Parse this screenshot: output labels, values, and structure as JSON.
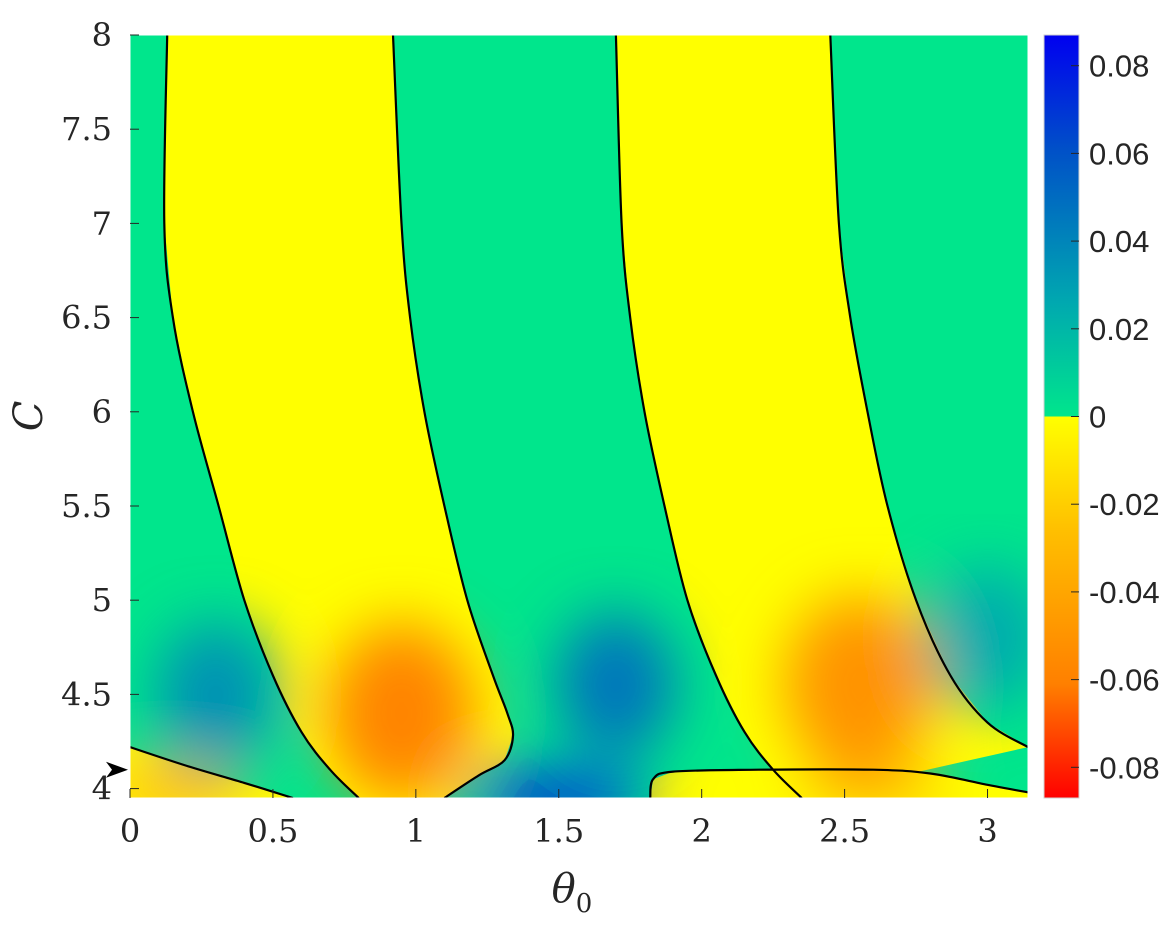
{
  "chart_data": {
    "type": "heatmap",
    "title": "",
    "xlabel": "θ",
    "xlabel_subscript": "0",
    "ylabel": "C",
    "xlim": [
      0,
      3.1416
    ],
    "ylim": [
      3.95,
      8
    ],
    "x_ticks": [
      {
        "value": 0,
        "label": "0"
      },
      {
        "value": 0.5,
        "label": "0.5"
      },
      {
        "value": 1,
        "label": "1"
      },
      {
        "value": 1.5,
        "label": "1.5"
      },
      {
        "value": 2,
        "label": "2"
      },
      {
        "value": 2.5,
        "label": "2.5"
      },
      {
        "value": 3,
        "label": "3"
      }
    ],
    "y_ticks": [
      {
        "value": 4,
        "label": "4"
      },
      {
        "value": 4.5,
        "label": "4.5"
      },
      {
        "value": 5,
        "label": "5"
      },
      {
        "value": 5.5,
        "label": "5.5"
      },
      {
        "value": 6,
        "label": "6"
      },
      {
        "value": 6.5,
        "label": "6.5"
      },
      {
        "value": 7,
        "label": "7"
      },
      {
        "value": 7.5,
        "label": "7.5"
      },
      {
        "value": 8,
        "label": "8"
      }
    ],
    "colorbar": {
      "range": [
        -0.087,
        0.087
      ],
      "ticks": [
        {
          "value": 0.08,
          "label": "0.08"
        },
        {
          "value": 0.06,
          "label": "0.06"
        },
        {
          "value": 0.04,
          "label": "0.04"
        },
        {
          "value": 0.02,
          "label": "0.02"
        },
        {
          "value": 0,
          "label": "0"
        },
        {
          "value": -0.02,
          "label": "-0.02"
        },
        {
          "value": -0.04,
          "label": "-0.04"
        },
        {
          "value": -0.06,
          "label": "-0.06"
        },
        {
          "value": -0.08,
          "label": "-0.08"
        }
      ],
      "positive_colors": [
        "#00e68c",
        "#00a8b0",
        "#0050c8",
        "#0000f0"
      ],
      "negative_colors": [
        "#ffff00",
        "#ffbf00",
        "#ff8000",
        "#ff0000"
      ]
    },
    "zero_contours": [
      {
        "name": "contour-1",
        "points": [
          [
            0.13,
            8
          ],
          [
            0.12,
            7
          ],
          [
            0.15,
            6.5
          ],
          [
            0.22,
            6
          ],
          [
            0.31,
            5.5
          ],
          [
            0.4,
            5.0
          ],
          [
            0.5,
            4.6
          ],
          [
            0.6,
            4.3
          ],
          [
            0.7,
            4.1
          ],
          [
            0.8,
            3.95
          ]
        ]
      },
      {
        "name": "contour-2",
        "points": [
          [
            0.92,
            8
          ],
          [
            0.95,
            7
          ],
          [
            0.98,
            6.5
          ],
          [
            1.03,
            6
          ],
          [
            1.1,
            5.5
          ],
          [
            1.18,
            5.0
          ],
          [
            1.27,
            4.6
          ],
          [
            1.32,
            4.4
          ],
          [
            1.34,
            4.28
          ],
          [
            1.31,
            4.15
          ],
          [
            1.22,
            4.07
          ],
          [
            1.1,
            3.95
          ]
        ]
      },
      {
        "name": "contour-3",
        "points": [
          [
            1.7,
            8
          ],
          [
            1.72,
            7
          ],
          [
            1.75,
            6.5
          ],
          [
            1.8,
            6
          ],
          [
            1.87,
            5.5
          ],
          [
            1.95,
            5.0
          ],
          [
            2.05,
            4.6
          ],
          [
            2.15,
            4.3
          ],
          [
            2.25,
            4.1
          ],
          [
            2.35,
            3.95
          ]
        ]
      },
      {
        "name": "contour-4",
        "points": [
          [
            2.45,
            8
          ],
          [
            2.48,
            7
          ],
          [
            2.52,
            6.5
          ],
          [
            2.58,
            6
          ],
          [
            2.65,
            5.5
          ],
          [
            2.75,
            5.0
          ],
          [
            2.87,
            4.6
          ],
          [
            3.0,
            4.35
          ],
          [
            3.1416,
            4.22
          ]
        ]
      },
      {
        "name": "contour-5",
        "points": [
          [
            0,
            4.22
          ],
          [
            0.2,
            4.12
          ],
          [
            0.4,
            4.03
          ],
          [
            0.57,
            3.95
          ]
        ]
      },
      {
        "name": "contour-6",
        "points": [
          [
            1.82,
            3.95
          ],
          [
            1.83,
            4.05
          ],
          [
            1.9,
            4.09
          ],
          [
            2.2,
            4.1
          ],
          [
            2.6,
            4.1
          ],
          [
            2.8,
            4.08
          ],
          [
            3.0,
            4.02
          ],
          [
            3.1416,
            3.98
          ]
        ]
      }
    ],
    "extrema": [
      {
        "x": 1.5,
        "y": 3.95,
        "value": 0.087
      },
      {
        "x": 1.7,
        "y": 4.55,
        "value": 0.05
      },
      {
        "x": 0.3,
        "y": 4.5,
        "value": 0.04
      },
      {
        "x": 3.0,
        "y": 4.8,
        "value": 0.03
      },
      {
        "x": 0.95,
        "y": 4.4,
        "value": -0.06
      },
      {
        "x": 2.55,
        "y": 4.55,
        "value": -0.055
      },
      {
        "x": 0.15,
        "y": 3.99,
        "value": -0.045
      },
      {
        "x": 2.6,
        "y": 4.0,
        "value": -0.04
      }
    ],
    "marker": {
      "y": 4.1,
      "symbol": "arrowhead"
    }
  }
}
